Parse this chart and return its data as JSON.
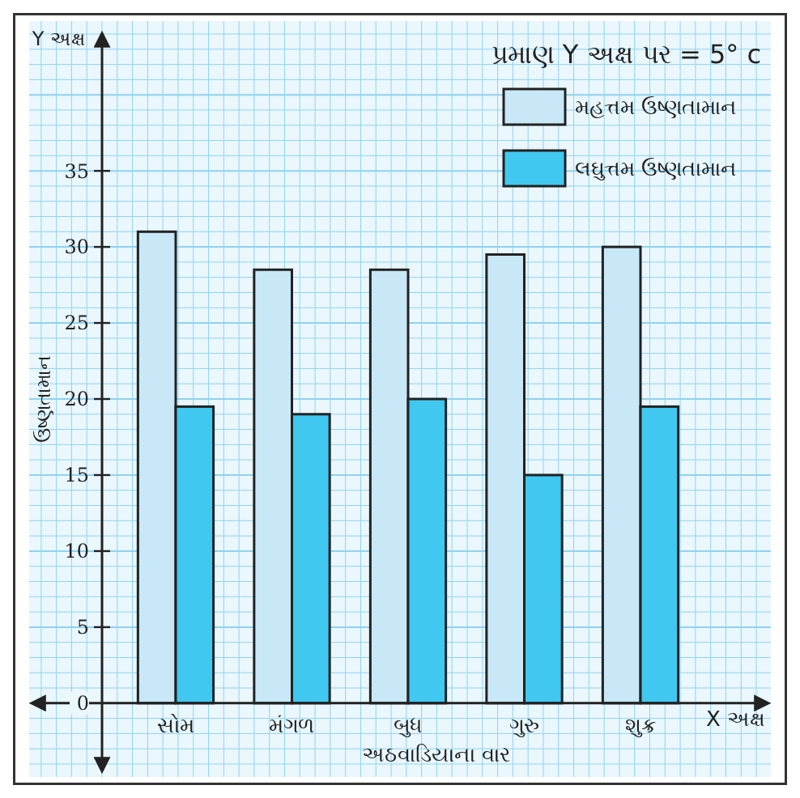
{
  "chart_data": {
    "type": "bar",
    "title": "પ્રમાણ Y અક્ષ પર = 5° c",
    "xlabel": "અઠવાડિયાના વાર",
    "ylabel": "ઉષ્ણતામાન",
    "annotations": [
      "Y અક્ષ",
      "X અક્ષ"
    ],
    "categories": [
      "સોમ",
      "મંગળ",
      "બુધ",
      "ગુરુ",
      "શુક્ર"
    ],
    "series": [
      {
        "name": "મહત્તમ ઉષ્ણતામાન",
        "color": "#c8e8f8",
        "values": [
          31,
          28.5,
          28.5,
          29.5,
          30
        ]
      },
      {
        "name": "લઘુત્તમ ઉષ્ણતામાન",
        "color": "#40c8f0",
        "values": [
          19.5,
          19,
          20,
          15,
          19.5
        ]
      }
    ],
    "ylim": [
      -4,
      44
    ],
    "yticks": [
      0,
      5,
      10,
      15,
      20,
      25,
      30,
      35
    ],
    "grid": true,
    "legend": "top right"
  }
}
